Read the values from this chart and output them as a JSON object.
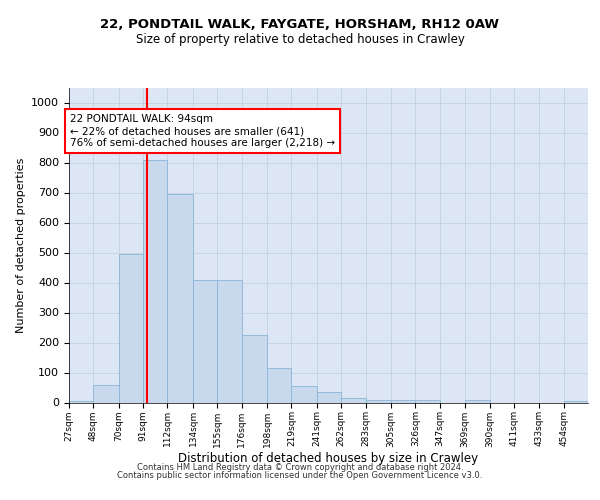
{
  "title1": "22, PONDTAIL WALK, FAYGATE, HORSHAM, RH12 0AW",
  "title2": "Size of property relative to detached houses in Crawley",
  "xlabel": "Distribution of detached houses by size in Crawley",
  "ylabel": "Number of detached properties",
  "bar_color": "#c8d9ed",
  "bar_edge_color": "#8ab4d8",
  "grid_color": "#c8d4e4",
  "background_color": "#dce6f5",
  "red_line_x": 94,
  "annotation_text": "22 PONDTAIL WALK: 94sqm\n← 22% of detached houses are smaller (641)\n76% of semi-detached houses are larger (2,218) →",
  "annotation_box_color": "white",
  "annotation_box_edge_color": "red",
  "footer_line1": "Contains HM Land Registry data © Crown copyright and database right 2024.",
  "footer_line2": "Contains public sector information licensed under the Open Government Licence v3.0.",
  "bins": [
    27,
    48,
    70,
    91,
    112,
    134,
    155,
    176,
    198,
    219,
    241,
    262,
    283,
    305,
    326,
    347,
    369,
    390,
    411,
    433,
    454,
    475
  ],
  "bin_labels": [
    "27sqm",
    "48sqm",
    "70sqm",
    "91sqm",
    "112sqm",
    "134sqm",
    "155sqm",
    "176sqm",
    "198sqm",
    "219sqm",
    "241sqm",
    "262sqm",
    "283sqm",
    "305sqm",
    "326sqm",
    "347sqm",
    "369sqm",
    "390sqm",
    "411sqm",
    "433sqm",
    "454sqm"
  ],
  "bar_heights": [
    5,
    60,
    495,
    808,
    695,
    410,
    410,
    225,
    115,
    55,
    35,
    15,
    10,
    10,
    8,
    0,
    10,
    0,
    0,
    0,
    5
  ],
  "ylim": [
    0,
    1050
  ],
  "yticks": [
    0,
    100,
    200,
    300,
    400,
    500,
    600,
    700,
    800,
    900,
    1000
  ]
}
